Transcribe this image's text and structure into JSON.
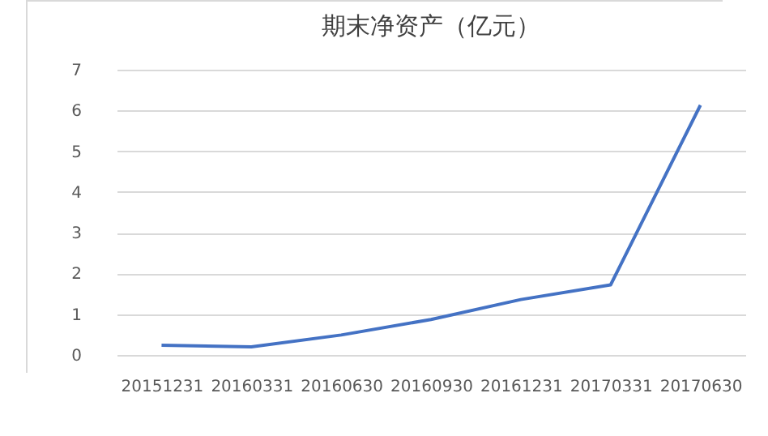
{
  "chart_data": {
    "type": "line",
    "title": "期末净资产（亿元）",
    "categories": [
      "20151231",
      "20160331",
      "20160630",
      "20160930",
      "20161231",
      "20170331",
      "20170630"
    ],
    "series": [
      {
        "color": "#4472c4",
        "values": [
          0.24,
          0.2,
          0.49,
          0.87,
          1.36,
          1.72,
          6.13
        ]
      }
    ],
    "ylim": [
      0,
      7
    ],
    "yticks": [
      0,
      1,
      2,
      3,
      4,
      5,
      6,
      7
    ],
    "grid": "y",
    "legend": false,
    "marker": "none",
    "line_style": "solid"
  }
}
